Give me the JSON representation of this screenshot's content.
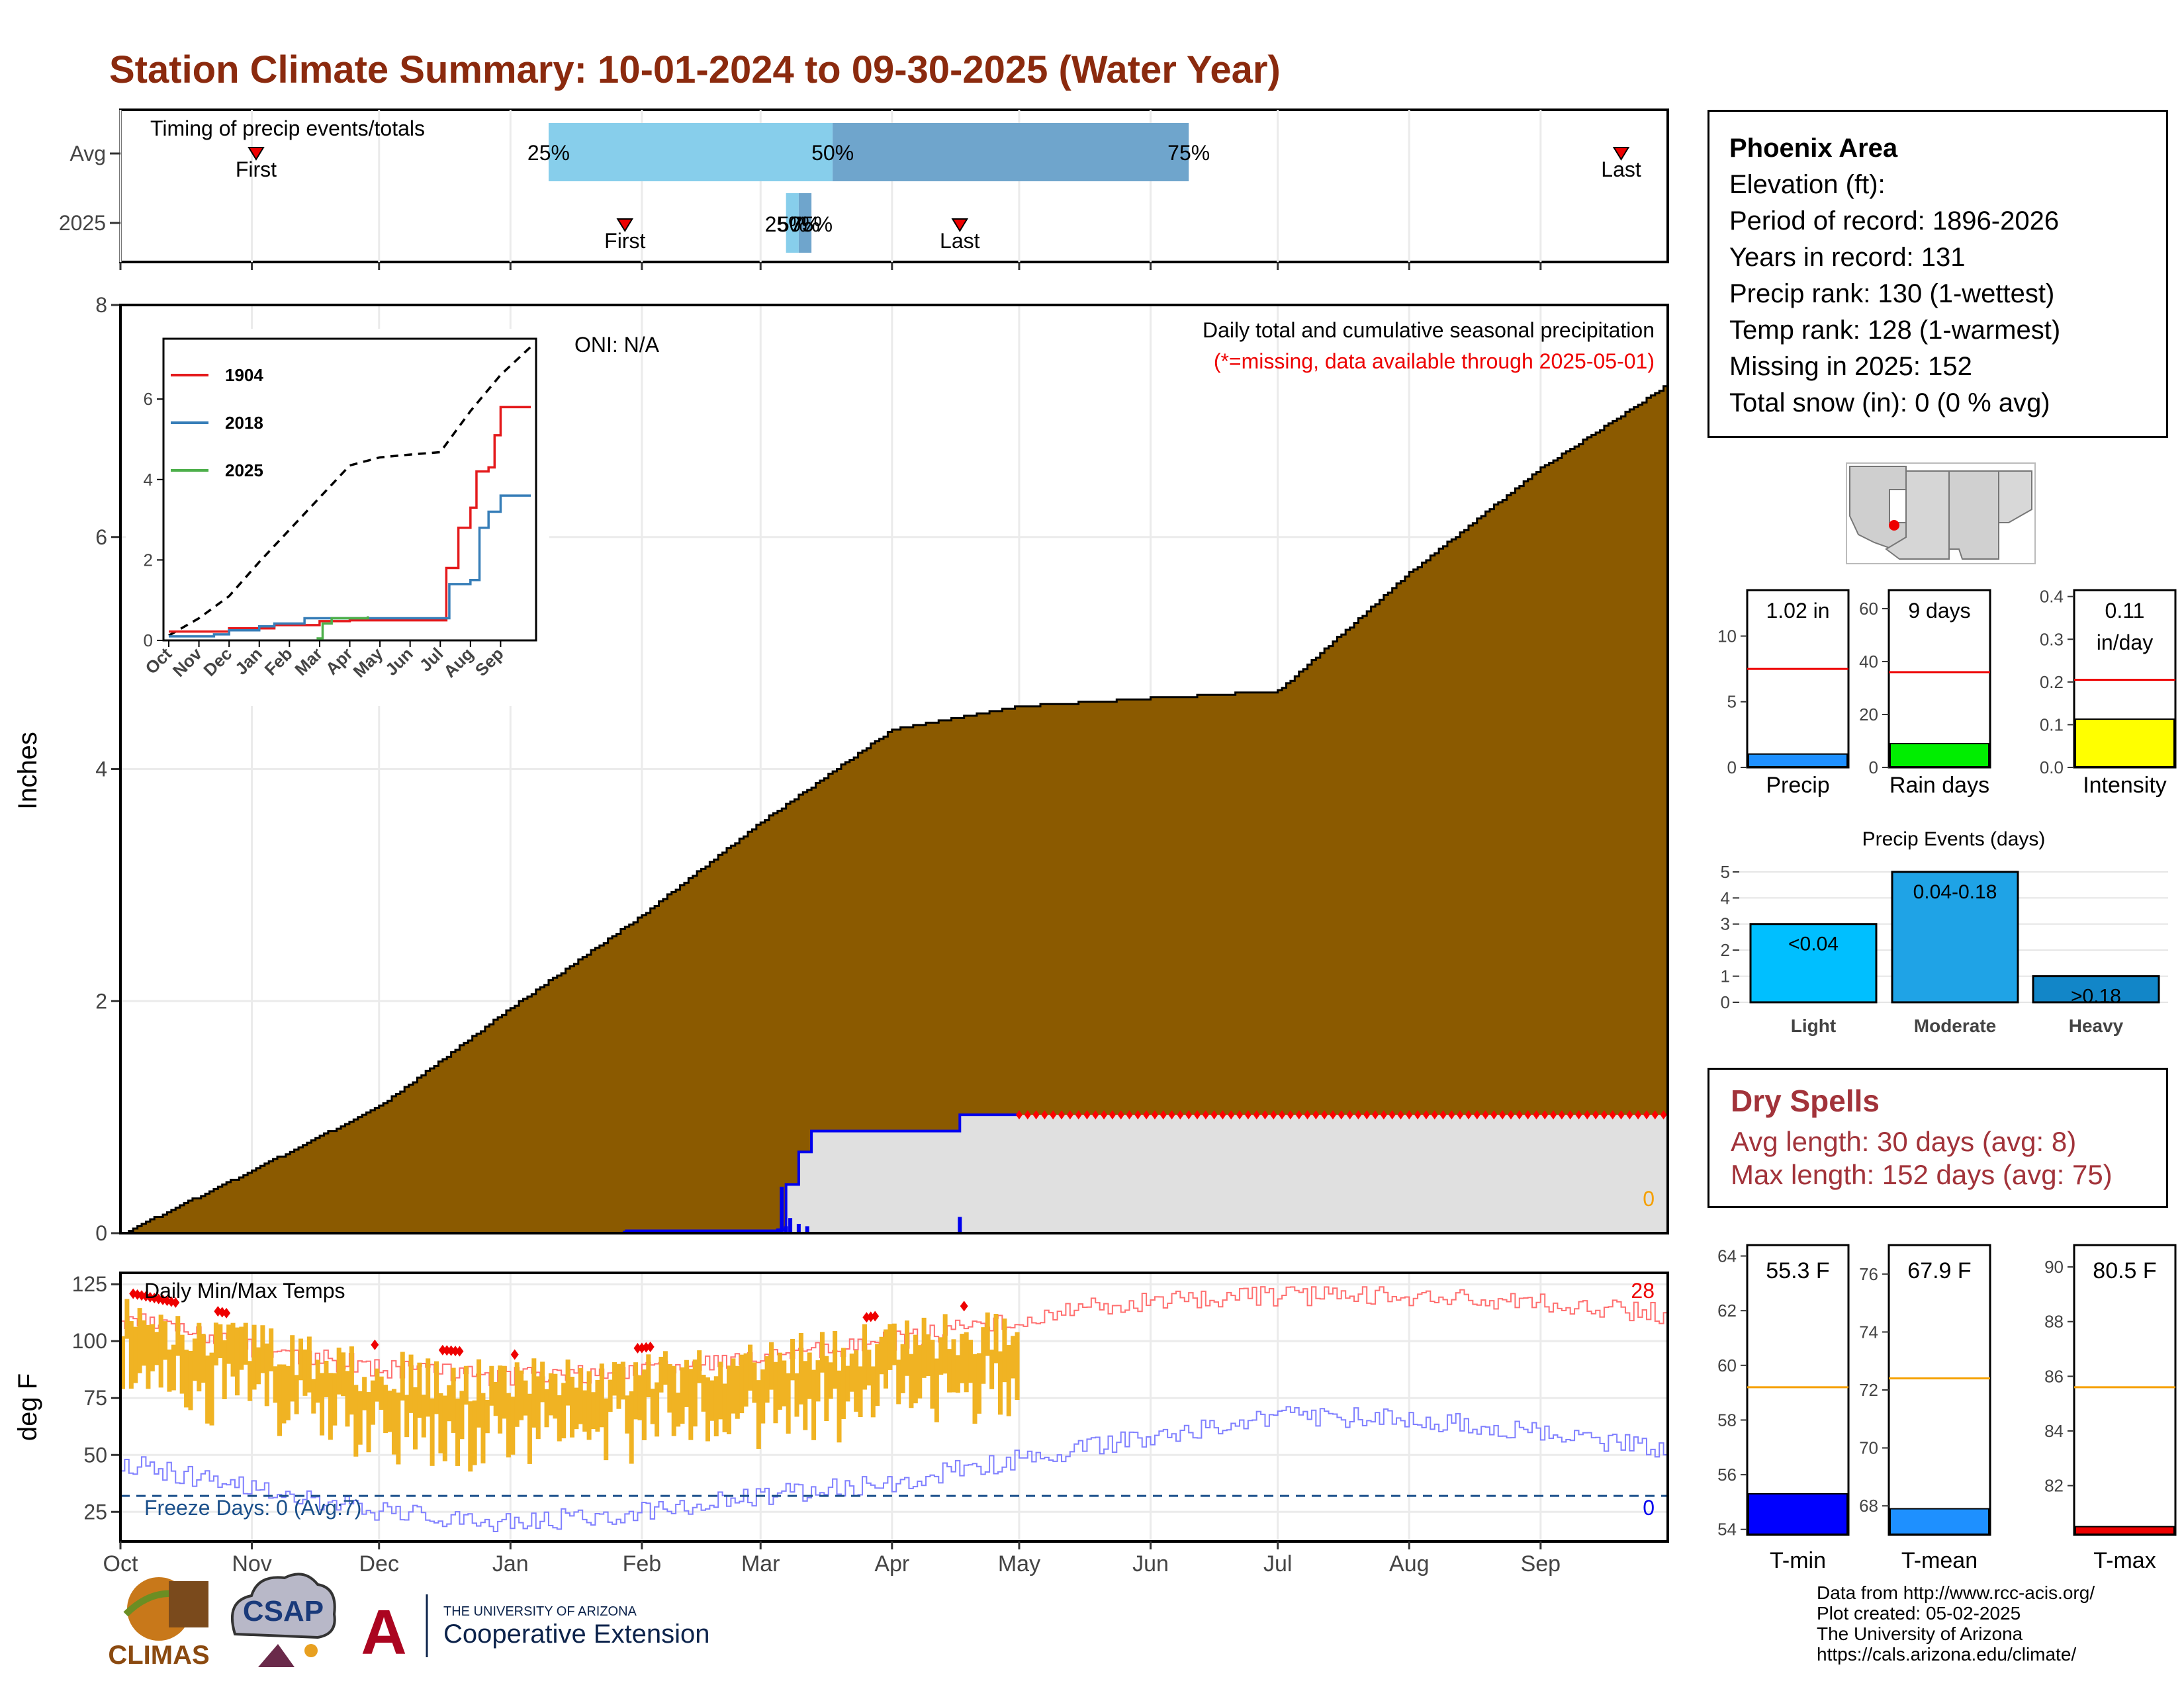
{
  "title": "Station Climate Summary: 10-01-2024 to 09-30-2025 (Water Year)",
  "timing": {
    "label": "Timing of precip events/totals",
    "row_labels": [
      "Avg",
      "2025"
    ],
    "avg": {
      "first": "Nov 2",
      "last": "Sep 20",
      "q25": "Jan 10",
      "q50": "Mar 18",
      "q75": "Jun 10"
    },
    "y2025": {
      "first": "Jan 28",
      "last": "Apr 17",
      "q25": "Mar 7",
      "q50": "Mar 10",
      "q75": "Mar 13"
    },
    "pct_labels": [
      "25%",
      "50%",
      "75%"
    ],
    "first_label": "First",
    "last_label": "Last"
  },
  "precip_panel": {
    "ylabel": "Inches",
    "annotation_title": "Daily total and cumulative seasonal precipitation",
    "annotation_missing": "(*=missing, data available through 2025-05-01)",
    "oni_label": "ONI: N/A",
    "zero_marker": "0",
    "y_ticks": [
      0,
      2,
      4,
      6,
      8
    ]
  },
  "inset": {
    "series_names": [
      "1904",
      "2018",
      "2025"
    ],
    "series_colors": [
      "#e41a1c",
      "#377eb8",
      "#4daf4a"
    ],
    "y_ticks": [
      0,
      2,
      4,
      6
    ],
    "month_labels": [
      "Oct",
      "Nov",
      "Dec",
      "Jan",
      "Feb",
      "Mar",
      "Apr",
      "May",
      "Jun",
      "Jul",
      "Aug",
      "Sep"
    ]
  },
  "temp_panel": {
    "ylabel": "deg F",
    "title": "Daily Min/Max Temps",
    "freeze_label": "Freeze Days: 0 (Avg:7)",
    "record_high_count": "28",
    "record_low_count": "0",
    "y_ticks": [
      25,
      50,
      75,
      100,
      125
    ],
    "freeze_line_f": 32
  },
  "x_months": [
    "Oct",
    "Nov",
    "Dec",
    "Jan",
    "Feb",
    "Mar",
    "Apr",
    "May",
    "Jun",
    "Jul",
    "Aug",
    "Sep"
  ],
  "station": {
    "name": "Phoenix Area",
    "lines": [
      "Elevation (ft):",
      "Period of record: 1896-2026",
      "Years in record: 131",
      "Precip rank: 130 (1-wettest)",
      "Temp rank: 128 (1-warmest)",
      "Missing in 2025: 152",
      "Total snow (in): 0 (0 % avg)"
    ]
  },
  "mini_bars": [
    {
      "label": "Precip",
      "value_text": "1.02 in",
      "value": 1.02,
      "avg": 7.5,
      "ymax": 13.5,
      "ticks": [
        0,
        5,
        10
      ],
      "color": "#1e90ff"
    },
    {
      "label": "Rain days",
      "value_text": "9 days",
      "value": 9,
      "avg": 36,
      "ymax": 67,
      "ticks": [
        0,
        20,
        40,
        60
      ],
      "color": "#00ee00"
    },
    {
      "label": "Intensity",
      "value_text": "0.11\nin/day",
      "value": 0.113,
      "avg": 0.205,
      "ymax": 0.415,
      "ticks": [
        "0.0",
        "0.1",
        "0.2",
        "0.3",
        "0.4"
      ],
      "color": "#ffff00"
    }
  ],
  "precip_events": {
    "title": "Precip Events (days)",
    "categories": [
      "Light",
      "Moderate",
      "Heavy"
    ],
    "values": [
      3,
      5,
      1
    ],
    "labels": [
      "<0.04",
      "0.04-0.18",
      ">0.18"
    ],
    "colors": [
      "#00bfff",
      "#1fa3e6",
      "#1286c8"
    ],
    "y_ticks": [
      0,
      1,
      2,
      3,
      4,
      5
    ]
  },
  "dry_spells": {
    "title": "Dry Spells",
    "avg_line": "Avg length: 30 days (avg: 8)",
    "max_line": "Max length: 152 days (avg: 75)"
  },
  "temp_bars": [
    {
      "label": "T-min",
      "value_text": "55.3 F",
      "value": 55.3,
      "avg": 59.2,
      "ymin": 53.8,
      "ymax": 64.4,
      "ticks": [
        54,
        56,
        58,
        60,
        62,
        64
      ],
      "color": "#0000ff"
    },
    {
      "label": "T-mean",
      "value_text": "67.9 F",
      "value": 67.9,
      "avg": 72.4,
      "ymin": 67.0,
      "ymax": 77.0,
      "ticks": [
        68,
        70,
        72,
        74,
        76
      ],
      "color": "#1e90ff"
    },
    {
      "label": "T-max",
      "value_text": "80.5 F",
      "value": 80.5,
      "avg": 85.6,
      "ymin": 80.2,
      "ymax": 90.8,
      "ticks": [
        82,
        84,
        86,
        88,
        90
      ],
      "color": "#ee0000"
    }
  ],
  "credits": [
    "Data from http://www.rcc-acis.org/",
    "Plot created: 05-02-2025",
    "The University of Arizona",
    "https://cals.arizona.edu/climate/"
  ],
  "logos": {
    "climas": "CLIMAS",
    "csap": "CSAP",
    "ua_small": "THE UNIVERSITY OF ARIZONA",
    "ua_big": "Cooperative Extension"
  },
  "colors": {
    "title": "#8b2a0e",
    "cumulative_fill": "#8b5a00",
    "current_fill": "#e0e0e0",
    "avg_line": "#ff0000",
    "temp_range": "#f0b323",
    "dry_text": "#a2333a"
  },
  "chart_data": [
    {
      "type": "area",
      "title": "Daily total and cumulative seasonal precipitation",
      "ylabel": "Inches",
      "ylim": [
        0,
        8
      ],
      "series": [
        {
          "name": "average cumulative",
          "x": [
            "2024-10-01",
            "2024-11-01",
            "2024-12-01",
            "2025-01-01",
            "2025-02-01",
            "2025-03-01",
            "2025-04-01",
            "2025-05-01",
            "2025-06-01",
            "2025-07-01",
            "2025-08-01",
            "2025-09-01",
            "2025-09-30"
          ],
          "y": [
            0,
            0.55,
            1.1,
            1.95,
            2.75,
            3.55,
            4.35,
            4.55,
            4.62,
            4.68,
            5.7,
            6.6,
            7.3
          ]
        },
        {
          "name": "2025 cumulative",
          "x": [
            "2025-01-28",
            "2025-03-05",
            "2025-03-07",
            "2025-03-10",
            "2025-03-13",
            "2025-04-17",
            "2025-05-01"
          ],
          "y": [
            0.02,
            0.03,
            0.42,
            0.7,
            0.88,
            1.02,
            1.02
          ]
        }
      ]
    },
    {
      "type": "line",
      "title": "Daily Min/Max Temps",
      "ylabel": "deg F",
      "ylim": [
        12,
        130
      ],
      "series": [
        {
          "name": "record high (approx)",
          "x": [
            "2024-10-01",
            "2024-11-01",
            "2024-12-01",
            "2025-01-01",
            "2025-02-01",
            "2025-03-01",
            "2025-04-01",
            "2025-05-01",
            "2025-06-01",
            "2025-07-01",
            "2025-08-01",
            "2025-09-01",
            "2025-09-30"
          ],
          "y": [
            110,
            97,
            88,
            84,
            86,
            93,
            100,
            110,
            118,
            120,
            120,
            117,
            112
          ]
        },
        {
          "name": "record low (approx)",
          "x": [
            "2024-10-01",
            "2024-11-01",
            "2024-12-01",
            "2025-01-01",
            "2025-02-01",
            "2025-03-01",
            "2025-04-01",
            "2025-05-01",
            "2025-06-01",
            "2025-07-01",
            "2025-08-01",
            "2025-09-01",
            "2025-09-30"
          ],
          "y": [
            47,
            35,
            25,
            20,
            25,
            32,
            38,
            48,
            58,
            67,
            66,
            60,
            52
          ]
        }
      ]
    }
  ]
}
